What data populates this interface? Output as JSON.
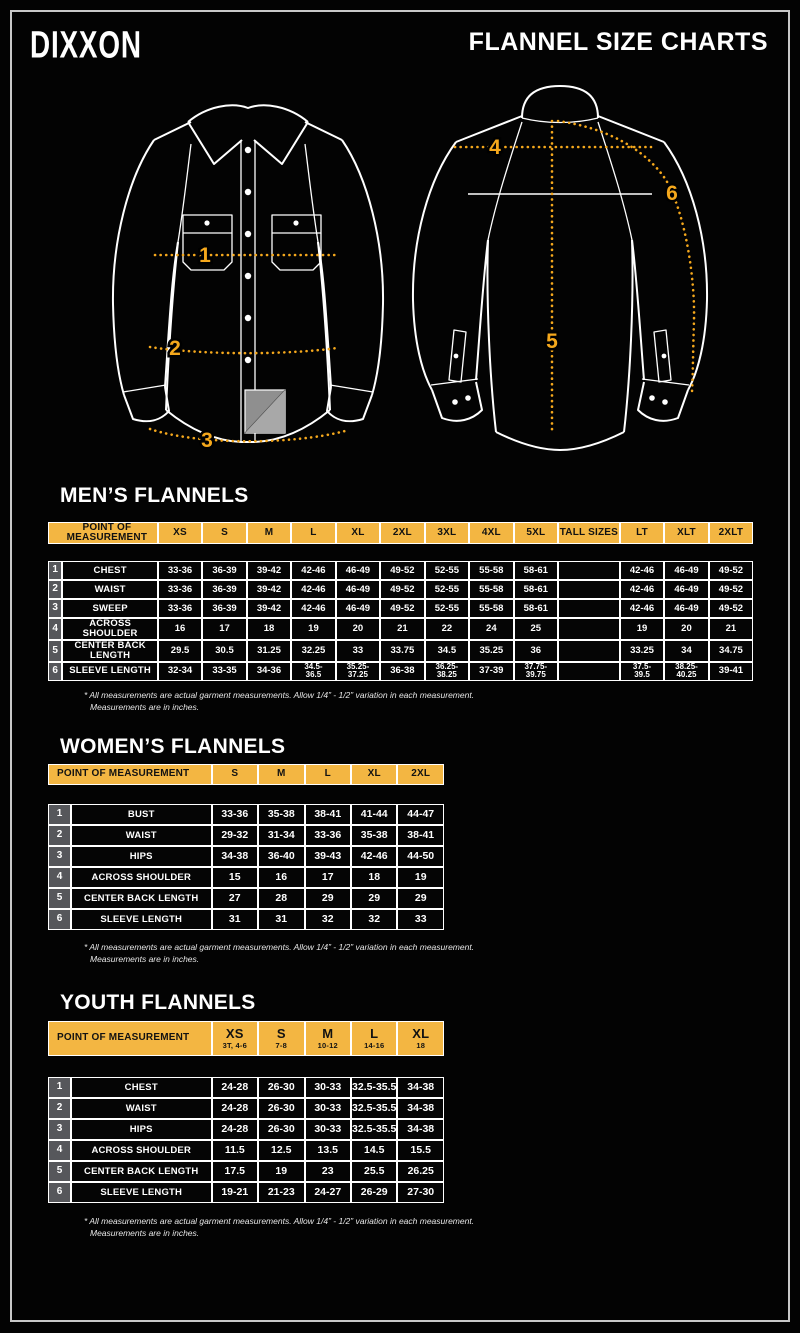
{
  "header": {
    "logo": "DIXXON",
    "title": "FLANNEL SIZE CHARTS"
  },
  "colors": {
    "accent_gold": "#F3B642",
    "diagram_gold": "#F5A81C",
    "row_number_bg": "#56575B",
    "grid_line": "#FFFFFF",
    "frame": "#C8C8C8",
    "background": "#030303"
  },
  "diagram": {
    "front_labels": [
      "1",
      "2",
      "3"
    ],
    "back_labels": [
      "4",
      "5",
      "6"
    ]
  },
  "footnote": {
    "line1": "* All measurements are actual garment measurements.  Allow 1/4” - 1/2” variation in each measurement.",
    "line2": "Measurements are in inches."
  },
  "tables": {
    "mens": {
      "title": "MEN’S FLANNELS",
      "header": [
        "POINT OF MEASUREMENT",
        "XS",
        "S",
        "M",
        "L",
        "XL",
        "2XL",
        "3XL",
        "4XL",
        "5XL",
        "TALL SIZES",
        "LT",
        "XLT",
        "2XLT"
      ],
      "rows": [
        {
          "num": "1",
          "label": "CHEST",
          "values": [
            "33-36",
            "36-39",
            "39-42",
            "42-46",
            "46-49",
            "49-52",
            "52-55",
            "55-58",
            "58-61",
            "",
            "42-46",
            "46-49",
            "49-52"
          ]
        },
        {
          "num": "2",
          "label": "WAIST",
          "values": [
            "33-36",
            "36-39",
            "39-42",
            "42-46",
            "46-49",
            "49-52",
            "52-55",
            "55-58",
            "58-61",
            "",
            "42-46",
            "46-49",
            "49-52"
          ]
        },
        {
          "num": "3",
          "label": "SWEEP",
          "values": [
            "33-36",
            "36-39",
            "39-42",
            "42-46",
            "46-49",
            "49-52",
            "52-55",
            "55-58",
            "58-61",
            "",
            "42-46",
            "46-49",
            "49-52"
          ]
        },
        {
          "num": "4",
          "label": "ACROSS SHOULDER",
          "values": [
            "16",
            "17",
            "18",
            "19",
            "20",
            "21",
            "22",
            "24",
            "25",
            "",
            "19",
            "20",
            "21"
          ]
        },
        {
          "num": "5",
          "label": "CENTER BACK LENGTH",
          "values": [
            "29.5",
            "30.5",
            "31.25",
            "32.25",
            "33",
            "33.75",
            "34.5",
            "35.25",
            "36",
            "",
            "33.25",
            "34",
            "34.75"
          ]
        },
        {
          "num": "6",
          "label": "SLEEVE LENGTH",
          "values": [
            "32-34",
            "33-35",
            "34-36",
            "34.5-\n36.5",
            "35.25-\n37.25",
            "36-38",
            "36.25-\n38.25",
            "37-39",
            "37.75-\n39.75",
            "",
            "37.5-\n39.5",
            "38.25-\n40.25",
            "39-41"
          ]
        }
      ]
    },
    "womens": {
      "title": "WOMEN’S FLANNELS",
      "header": [
        "POINT OF MEASUREMENT",
        "S",
        "M",
        "L",
        "XL",
        "2XL"
      ],
      "rows": [
        {
          "num": "1",
          "label": "BUST",
          "values": [
            "33-36",
            "35-38",
            "38-41",
            "41-44",
            "44-47"
          ]
        },
        {
          "num": "2",
          "label": "WAIST",
          "values": [
            "29-32",
            "31-34",
            "33-36",
            "35-38",
            "38-41"
          ]
        },
        {
          "num": "3",
          "label": "HIPS",
          "values": [
            "34-38",
            "36-40",
            "39-43",
            "42-46",
            "44-50"
          ]
        },
        {
          "num": "4",
          "label": "ACROSS SHOULDER",
          "values": [
            "15",
            "16",
            "17",
            "18",
            "19"
          ]
        },
        {
          "num": "5",
          "label": "CENTER BACK LENGTH",
          "values": [
            "27",
            "28",
            "29",
            "29",
            "29"
          ]
        },
        {
          "num": "6",
          "label": "SLEEVE LENGTH",
          "values": [
            "31",
            "31",
            "32",
            "32",
            "33"
          ]
        }
      ]
    },
    "youth": {
      "title": "YOUTH FLANNELS",
      "header": [
        {
          "label": "POINT OF MEASUREMENT",
          "sub": ""
        },
        {
          "label": "XS",
          "sub": "3T, 4-6"
        },
        {
          "label": "S",
          "sub": "7-8"
        },
        {
          "label": "M",
          "sub": "10-12"
        },
        {
          "label": "L",
          "sub": "14-16"
        },
        {
          "label": "XL",
          "sub": "18"
        }
      ],
      "rows": [
        {
          "num": "1",
          "label": "CHEST",
          "values": [
            "24-28",
            "26-30",
            "30-33",
            "32.5-35.5",
            "34-38"
          ]
        },
        {
          "num": "2",
          "label": "WAIST",
          "values": [
            "24-28",
            "26-30",
            "30-33",
            "32.5-35.5",
            "34-38"
          ]
        },
        {
          "num": "3",
          "label": "HIPS",
          "values": [
            "24-28",
            "26-30",
            "30-33",
            "32.5-35.5",
            "34-38"
          ]
        },
        {
          "num": "4",
          "label": "ACROSS SHOULDER",
          "values": [
            "11.5",
            "12.5",
            "13.5",
            "14.5",
            "15.5"
          ]
        },
        {
          "num": "5",
          "label": "CENTER BACK LENGTH",
          "values": [
            "17.5",
            "19",
            "23",
            "25.5",
            "26.25"
          ]
        },
        {
          "num": "6",
          "label": "SLEEVE LENGTH",
          "values": [
            "19-21",
            "21-23",
            "24-27",
            "26-29",
            "27-30"
          ]
        }
      ]
    }
  }
}
